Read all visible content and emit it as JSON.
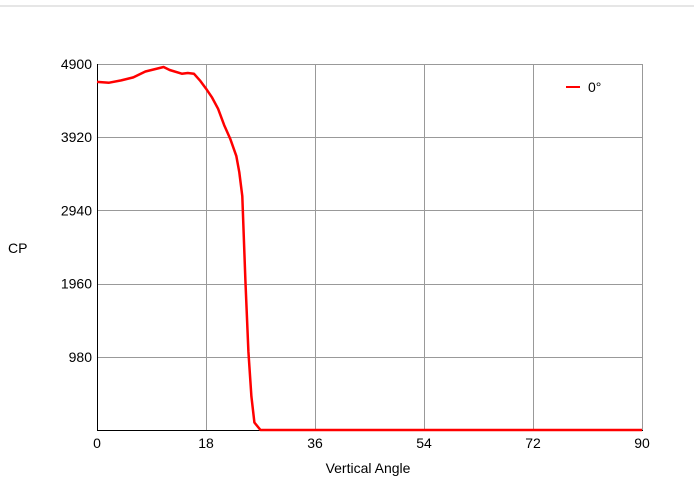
{
  "chart_data": {
    "type": "line",
    "title": "",
    "xlabel": "Vertical Angle",
    "ylabel": "CP",
    "xlim": [
      0,
      90
    ],
    "ylim": [
      0,
      4900
    ],
    "xticks": [
      0,
      18,
      36,
      54,
      72,
      90
    ],
    "yticks": [
      980,
      1960,
      2940,
      3920,
      4900
    ],
    "x_tick_labels": [
      "0",
      "18",
      "36",
      "54",
      "72",
      "90"
    ],
    "y_tick_labels": [
      "980",
      "1960",
      "2940",
      "3920",
      "4900"
    ],
    "grid": true,
    "legend_position": "top-right",
    "colors": {
      "series": "#ff0000",
      "grid": "#999999",
      "axis": "#000000",
      "top_rule": "#cccccc"
    },
    "series": [
      {
        "name": "0°",
        "x": [
          0,
          2,
          4,
          6,
          8,
          10,
          11,
          12,
          14,
          15,
          16,
          17,
          18,
          19,
          20,
          21,
          22,
          23,
          23.5,
          24,
          24.5,
          25,
          25.5,
          26,
          27,
          30,
          36,
          54,
          72,
          90
        ],
        "y": [
          4660,
          4650,
          4680,
          4720,
          4800,
          4840,
          4860,
          4820,
          4770,
          4780,
          4770,
          4680,
          4570,
          4450,
          4300,
          4080,
          3900,
          3670,
          3450,
          3130,
          2000,
          1050,
          450,
          100,
          0,
          0,
          0,
          0,
          0,
          0
        ]
      }
    ]
  }
}
